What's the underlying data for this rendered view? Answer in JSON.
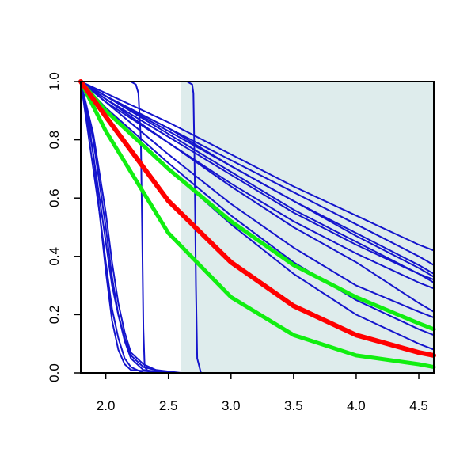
{
  "chart_data": {
    "type": "line",
    "title": "",
    "xlabel": "",
    "ylabel": "",
    "xlim": [
      1.8,
      4.62
    ],
    "ylim": [
      0.0,
      1.0
    ],
    "x_ticks": [
      2.0,
      2.5,
      3.0,
      3.5,
      4.0,
      4.5
    ],
    "x_tick_labels": [
      "2.0",
      "2.5",
      "3.0",
      "3.5",
      "4.0",
      "4.5"
    ],
    "y_ticks": [
      0.0,
      0.2,
      0.4,
      0.6,
      0.8,
      1.0
    ],
    "y_tick_labels": [
      "0.0",
      "0.2",
      "0.4",
      "0.6",
      "0.8",
      "1.0"
    ],
    "grid": false,
    "legend": "none",
    "shaded_region": {
      "x": [
        2.6,
        4.62
      ],
      "color": "#deecec"
    },
    "colors": {
      "blue": "#1414cc",
      "red": "#ff0000",
      "green": "#11ee11",
      "axis": "#000000"
    },
    "series": [
      {
        "color": "blue",
        "width": 2,
        "x": [
          1.8,
          2.0,
          2.5,
          3.0,
          3.5,
          4.0,
          4.5,
          4.62
        ],
        "values": [
          1.0,
          0.95,
          0.84,
          0.71,
          0.59,
          0.48,
          0.37,
          0.34
        ]
      },
      {
        "color": "blue",
        "width": 2,
        "x": [
          1.8,
          2.0,
          2.5,
          3.0,
          3.5,
          4.0,
          4.5,
          4.62
        ],
        "values": [
          1.0,
          0.95,
          0.82,
          0.69,
          0.56,
          0.45,
          0.34,
          0.31
        ]
      },
      {
        "color": "blue",
        "width": 2,
        "x": [
          1.8,
          2.0,
          2.5,
          3.0,
          3.5,
          4.0,
          4.5,
          4.62
        ],
        "values": [
          1.0,
          0.95,
          0.84,
          0.73,
          0.62,
          0.51,
          0.4,
          0.37
        ]
      },
      {
        "color": "blue",
        "width": 2,
        "x": [
          1.8,
          2.0,
          2.5,
          3.0,
          3.5,
          4.0,
          4.5,
          4.62
        ],
        "values": [
          1.0,
          0.96,
          0.86,
          0.75,
          0.64,
          0.54,
          0.44,
          0.42
        ]
      },
      {
        "color": "blue",
        "width": 2,
        "x": [
          1.8,
          2.0,
          2.5,
          3.0,
          3.5,
          4.0,
          4.5,
          4.62
        ],
        "values": [
          1.0,
          0.95,
          0.83,
          0.71,
          0.59,
          0.47,
          0.36,
          0.33
        ]
      },
      {
        "color": "blue",
        "width": 2,
        "x": [
          1.8,
          2.0,
          2.5,
          3.0,
          3.5,
          4.0,
          4.5,
          4.62
        ],
        "values": [
          1.0,
          0.94,
          0.81,
          0.68,
          0.55,
          0.44,
          0.34,
          0.32
        ]
      },
      {
        "color": "blue",
        "width": 2,
        "x": [
          1.8,
          2.0,
          2.5,
          3.0,
          3.5,
          4.0,
          4.5,
          4.62
        ],
        "values": [
          1.0,
          0.93,
          0.79,
          0.65,
          0.52,
          0.41,
          0.31,
          0.29
        ]
      },
      {
        "color": "blue",
        "width": 2,
        "x": [
          1.8,
          2.0,
          2.5,
          3.0,
          3.5,
          4.0,
          4.5,
          4.62
        ],
        "values": [
          1.0,
          0.94,
          0.79,
          0.64,
          0.5,
          0.38,
          0.24,
          0.21
        ]
      },
      {
        "color": "blue",
        "width": 2,
        "x": [
          1.8,
          2.0,
          2.5,
          3.0,
          3.5,
          4.0,
          4.5,
          4.62
        ],
        "values": [
          1.0,
          0.93,
          0.75,
          0.58,
          0.43,
          0.3,
          0.21,
          0.19
        ]
      },
      {
        "color": "blue",
        "width": 2,
        "x": [
          1.8,
          2.0,
          2.5,
          3.0,
          3.5,
          4.0,
          4.5,
          4.62
        ],
        "values": [
          1.0,
          0.91,
          0.72,
          0.54,
          0.38,
          0.25,
          0.15,
          0.13
        ]
      },
      {
        "color": "blue",
        "width": 2,
        "x": [
          1.8,
          2.0,
          2.5,
          3.0,
          3.5,
          4.0,
          4.5,
          4.62
        ],
        "values": [
          1.0,
          0.9,
          0.7,
          0.51,
          0.34,
          0.2,
          0.1,
          0.08
        ]
      },
      {
        "color": "blue",
        "width": 2,
        "x": [
          1.8,
          1.9,
          2.0,
          2.05,
          2.1,
          2.15,
          2.2,
          2.3,
          2.5,
          3.0,
          4.62
        ],
        "values": [
          1.0,
          0.75,
          0.45,
          0.3,
          0.2,
          0.12,
          0.06,
          0.02,
          0.0,
          0.0,
          0.0
        ]
      },
      {
        "color": "blue",
        "width": 2,
        "x": [
          1.8,
          1.9,
          2.0,
          2.05,
          2.1,
          2.15,
          2.2,
          2.3,
          2.5,
          3.0,
          4.62
        ],
        "values": [
          1.0,
          0.8,
          0.5,
          0.33,
          0.2,
          0.11,
          0.05,
          0.01,
          0.0,
          0.0,
          0.0
        ]
      },
      {
        "color": "blue",
        "width": 2,
        "x": [
          1.8,
          1.9,
          1.95,
          2.0,
          2.05,
          2.1,
          2.15,
          2.2,
          2.3,
          2.5,
          4.62
        ],
        "values": [
          1.0,
          0.7,
          0.55,
          0.38,
          0.22,
          0.12,
          0.05,
          0.02,
          0.0,
          0.0,
          0.0
        ]
      },
      {
        "color": "blue",
        "width": 2,
        "x": [
          1.8,
          1.85,
          1.9,
          1.95,
          2.0,
          2.05,
          2.1,
          2.15,
          2.2,
          2.5,
          4.62
        ],
        "values": [
          1.0,
          0.9,
          0.75,
          0.55,
          0.35,
          0.18,
          0.08,
          0.03,
          0.01,
          0.0,
          0.0
        ]
      },
      {
        "color": "blue",
        "width": 2,
        "x": [
          1.8,
          1.9,
          2.0,
          2.05,
          2.1,
          2.15,
          2.2,
          2.3,
          2.4,
          2.6,
          4.62
        ],
        "values": [
          1.0,
          0.82,
          0.55,
          0.38,
          0.24,
          0.14,
          0.07,
          0.03,
          0.01,
          0.0,
          0.0
        ]
      },
      {
        "color": "blue",
        "width": 2,
        "x": [
          1.8,
          2.2,
          2.24,
          2.26,
          2.28,
          2.29,
          2.3,
          2.31,
          2.35,
          2.5,
          3.0,
          4.62
        ],
        "values": [
          1.0,
          1.0,
          0.99,
          0.96,
          0.8,
          0.5,
          0.15,
          0.02,
          0.0,
          0.0,
          0.0,
          0.0
        ]
      },
      {
        "color": "blue",
        "width": 2,
        "x": [
          1.8,
          2.65,
          2.69,
          2.7,
          2.71,
          2.72,
          2.73,
          2.76,
          3.0,
          4.62
        ],
        "values": [
          1.0,
          1.0,
          0.99,
          0.96,
          0.7,
          0.3,
          0.05,
          0.0,
          0.0,
          0.0
        ]
      },
      {
        "color": "red",
        "width": 6,
        "x": [
          1.8,
          2.0,
          2.5,
          3.0,
          3.5,
          4.0,
          4.5,
          4.62
        ],
        "values": [
          1.0,
          0.88,
          0.59,
          0.38,
          0.23,
          0.13,
          0.07,
          0.06
        ]
      },
      {
        "color": "green",
        "width": 5,
        "x": [
          1.8,
          2.0,
          2.5,
          3.0,
          3.5,
          4.0,
          4.5,
          4.62
        ],
        "values": [
          1.0,
          0.9,
          0.7,
          0.52,
          0.37,
          0.26,
          0.17,
          0.15
        ]
      },
      {
        "color": "green",
        "width": 5,
        "x": [
          1.8,
          2.0,
          2.5,
          3.0,
          3.5,
          4.0,
          4.5,
          4.62
        ],
        "values": [
          1.0,
          0.83,
          0.48,
          0.26,
          0.13,
          0.06,
          0.03,
          0.02
        ]
      }
    ]
  }
}
